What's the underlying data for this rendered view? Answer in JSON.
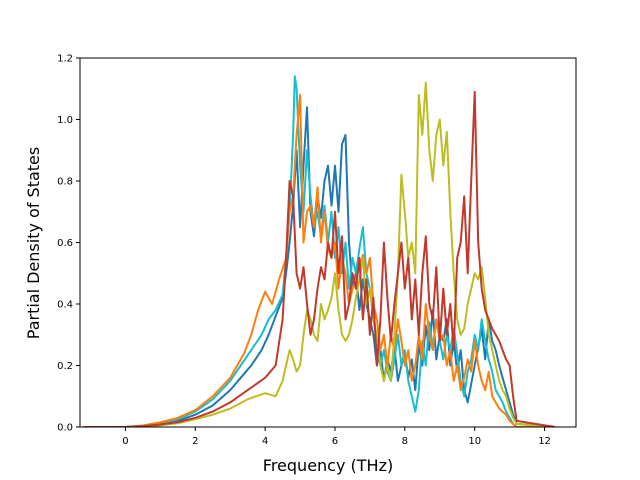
{
  "chart_data": {
    "type": "line",
    "title": "",
    "xlabel": "Frequency (THz)",
    "ylabel": "Partial Density of States",
    "xlim": [
      -1.3,
      12.9
    ],
    "ylim": [
      0.0,
      1.2
    ],
    "xticks": [
      0,
      2,
      4,
      6,
      8,
      10,
      12
    ],
    "yticks": [
      0.0,
      0.2,
      0.4,
      0.6,
      0.8,
      1.0,
      1.2
    ],
    "xtick_labels": [
      "0",
      "2",
      "4",
      "6",
      "8",
      "10",
      "12"
    ],
    "ytick_labels": [
      "0.0",
      "0.2",
      "0.4",
      "0.6",
      "0.8",
      "1.0",
      "1.2"
    ],
    "grid": false,
    "legend": "none",
    "series": [
      {
        "color": "#1f77b4",
        "x": [
          -1.2,
          0,
          0.5,
          1,
          1.5,
          2,
          2.5,
          3,
          3.3,
          3.6,
          3.9,
          4.1,
          4.3,
          4.5,
          4.6,
          4.7,
          4.8,
          4.9,
          5.0,
          5.1,
          5.2,
          5.3,
          5.4,
          5.5,
          5.6,
          5.7,
          5.8,
          5.9,
          6.0,
          6.1,
          6.2,
          6.3,
          6.4,
          6.5,
          6.6,
          6.7,
          6.8,
          6.9,
          7.0,
          7.1,
          7.2,
          7.3,
          7.4,
          7.5,
          7.6,
          7.7,
          7.8,
          7.9,
          8.0,
          8.1,
          8.2,
          8.3,
          8.4,
          8.5,
          8.6,
          8.7,
          8.8,
          8.9,
          9.0,
          9.1,
          9.2,
          9.3,
          9.4,
          9.5,
          9.6,
          9.7,
          9.8,
          9.9,
          10.0,
          10.1,
          10.2,
          10.3,
          10.4,
          10.5,
          10.6,
          10.7,
          10.8,
          10.9,
          11.0,
          11.1,
          11.2,
          12.3
        ],
        "y": [
          0,
          0,
          0.003,
          0.01,
          0.02,
          0.04,
          0.07,
          0.12,
          0.16,
          0.2,
          0.25,
          0.3,
          0.36,
          0.42,
          0.5,
          0.6,
          0.72,
          0.9,
          0.65,
          0.85,
          1.04,
          0.7,
          0.62,
          0.75,
          0.68,
          0.8,
          0.85,
          0.72,
          0.85,
          0.7,
          0.92,
          0.95,
          0.6,
          0.45,
          0.5,
          0.38,
          0.48,
          0.4,
          0.35,
          0.3,
          0.2,
          0.25,
          0.15,
          0.22,
          0.18,
          0.26,
          0.15,
          0.2,
          0.24,
          0.16,
          0.22,
          0.12,
          0.27,
          0.2,
          0.33,
          0.25,
          0.38,
          0.22,
          0.3,
          0.28,
          0.35,
          0.2,
          0.28,
          0.18,
          0.25,
          0.12,
          0.08,
          0.14,
          0.2,
          0.26,
          0.32,
          0.22,
          0.35,
          0.28,
          0.25,
          0.2,
          0.16,
          0.12,
          0.08,
          0.04,
          0.01,
          0
        ]
      },
      {
        "color": "#17becf",
        "x": [
          -1.2,
          0,
          0.5,
          1,
          1.5,
          2,
          2.5,
          3,
          3.3,
          3.6,
          3.9,
          4.1,
          4.3,
          4.5,
          4.6,
          4.7,
          4.8,
          4.85,
          4.9,
          5.0,
          5.1,
          5.2,
          5.3,
          5.4,
          5.5,
          5.6,
          5.7,
          5.8,
          5.9,
          6.0,
          6.1,
          6.2,
          6.3,
          6.4,
          6.5,
          6.6,
          6.7,
          6.8,
          6.9,
          7.0,
          7.1,
          7.2,
          7.3,
          7.4,
          7.5,
          7.6,
          7.7,
          7.8,
          7.9,
          8.0,
          8.1,
          8.2,
          8.3,
          8.4,
          8.5,
          8.6,
          8.7,
          8.8,
          8.9,
          9.0,
          9.1,
          9.2,
          9.3,
          9.4,
          9.5,
          9.6,
          9.7,
          9.8,
          9.9,
          10.0,
          10.1,
          10.2,
          10.3,
          10.4,
          10.5,
          10.6,
          10.7,
          10.8,
          10.9,
          11.0,
          11.1,
          11.2,
          12.3
        ],
        "y": [
          0,
          0,
          0.004,
          0.012,
          0.025,
          0.05,
          0.09,
          0.15,
          0.2,
          0.25,
          0.3,
          0.35,
          0.38,
          0.43,
          0.55,
          0.7,
          0.95,
          1.14,
          1.1,
          0.85,
          0.7,
          0.9,
          0.75,
          0.65,
          0.7,
          0.62,
          0.72,
          0.6,
          0.7,
          0.55,
          0.65,
          0.5,
          0.6,
          0.45,
          0.55,
          0.5,
          0.58,
          0.65,
          0.5,
          0.45,
          0.35,
          0.28,
          0.2,
          0.25,
          0.18,
          0.15,
          0.22,
          0.3,
          0.2,
          0.25,
          0.15,
          0.1,
          0.05,
          0.12,
          0.28,
          0.2,
          0.34,
          0.26,
          0.35,
          0.28,
          0.22,
          0.3,
          0.25,
          0.32,
          0.24,
          0.15,
          0.1,
          0.18,
          0.22,
          0.3,
          0.25,
          0.35,
          0.28,
          0.22,
          0.18,
          0.12,
          0.1,
          0.08,
          0.05,
          0.03,
          0.01,
          0,
          0
        ]
      },
      {
        "color": "#ff7f0e",
        "x": [
          -1.2,
          0,
          0.5,
          1,
          1.5,
          2,
          2.5,
          3,
          3.2,
          3.4,
          3.6,
          3.8,
          4.0,
          4.2,
          4.4,
          4.6,
          4.7,
          4.8,
          4.9,
          5.0,
          5.1,
          5.2,
          5.3,
          5.4,
          5.5,
          5.6,
          5.7,
          5.8,
          5.9,
          6.0,
          6.1,
          6.2,
          6.3,
          6.4,
          6.5,
          6.6,
          6.7,
          6.8,
          6.9,
          7.0,
          7.1,
          7.2,
          7.3,
          7.4,
          7.5,
          7.6,
          7.7,
          7.8,
          7.9,
          8.0,
          8.1,
          8.2,
          8.3,
          8.4,
          8.5,
          8.6,
          8.7,
          8.8,
          8.9,
          9.0,
          9.1,
          9.2,
          9.3,
          9.4,
          9.5,
          9.6,
          9.7,
          9.8,
          9.9,
          10.0,
          10.1,
          10.2,
          10.3,
          10.4,
          10.5,
          10.6,
          10.7,
          10.8,
          10.9,
          11.0,
          11.1,
          11.2,
          12.3
        ],
        "y": [
          0,
          0,
          0.005,
          0.015,
          0.03,
          0.055,
          0.1,
          0.16,
          0.2,
          0.24,
          0.3,
          0.38,
          0.44,
          0.4,
          0.48,
          0.55,
          0.7,
          0.75,
          0.95,
          1.08,
          0.6,
          0.7,
          0.72,
          0.65,
          0.78,
          0.6,
          0.7,
          0.58,
          0.55,
          0.6,
          0.45,
          0.55,
          0.5,
          0.4,
          0.45,
          0.48,
          0.52,
          0.56,
          0.5,
          0.55,
          0.4,
          0.35,
          0.25,
          0.3,
          0.2,
          0.3,
          0.25,
          0.35,
          0.28,
          0.2,
          0.25,
          0.15,
          0.2,
          0.3,
          0.22,
          0.4,
          0.3,
          0.25,
          0.35,
          0.28,
          0.3,
          0.2,
          0.25,
          0.15,
          0.2,
          0.12,
          0.16,
          0.22,
          0.18,
          0.28,
          0.2,
          0.15,
          0.12,
          0.18,
          0.1,
          0.08,
          0.06,
          0.05,
          0.04,
          0.02,
          0.01,
          0,
          0
        ]
      },
      {
        "color": "#bcbd22",
        "x": [
          -1.2,
          0,
          0.5,
          1,
          1.5,
          2,
          2.5,
          3,
          3.5,
          4.0,
          4.3,
          4.5,
          4.7,
          4.8,
          4.9,
          5.0,
          5.1,
          5.2,
          5.3,
          5.4,
          5.5,
          5.6,
          5.7,
          5.8,
          5.9,
          6.0,
          6.1,
          6.2,
          6.3,
          6.4,
          6.5,
          6.6,
          6.7,
          6.8,
          6.9,
          7.0,
          7.1,
          7.2,
          7.3,
          7.4,
          7.5,
          7.6,
          7.7,
          7.8,
          7.9,
          8.0,
          8.1,
          8.2,
          8.3,
          8.4,
          8.5,
          8.6,
          8.7,
          8.8,
          8.9,
          9.0,
          9.1,
          9.2,
          9.3,
          9.4,
          9.5,
          9.6,
          9.7,
          9.8,
          9.9,
          10.0,
          10.1,
          10.2,
          10.3,
          10.4,
          10.5,
          10.6,
          10.7,
          10.8,
          10.9,
          11.0,
          11.1,
          11.2,
          12.3
        ],
        "y": [
          0,
          0,
          0.002,
          0.006,
          0.012,
          0.025,
          0.04,
          0.06,
          0.09,
          0.11,
          0.1,
          0.15,
          0.25,
          0.22,
          0.18,
          0.2,
          0.3,
          0.38,
          0.35,
          0.3,
          0.28,
          0.4,
          0.35,
          0.38,
          0.42,
          0.5,
          0.38,
          0.3,
          0.28,
          0.3,
          0.35,
          0.42,
          0.48,
          0.55,
          0.4,
          0.45,
          0.35,
          0.3,
          0.2,
          0.15,
          0.2,
          0.15,
          0.3,
          0.5,
          0.82,
          0.7,
          0.55,
          0.6,
          0.5,
          1.08,
          0.95,
          1.12,
          0.9,
          0.8,
          0.95,
          1.0,
          0.85,
          0.96,
          0.7,
          0.5,
          0.35,
          0.3,
          0.32,
          0.4,
          0.45,
          0.5,
          0.48,
          0.52,
          0.42,
          0.3,
          0.25,
          0.2,
          0.15,
          0.12,
          0.1,
          0.06,
          0.03,
          0.01,
          0
        ]
      },
      {
        "color": "#c0392b",
        "x": [
          -1.2,
          0,
          0.5,
          1,
          1.5,
          2,
          2.5,
          3,
          3.5,
          4.0,
          4.3,
          4.5,
          4.6,
          4.7,
          4.8,
          4.9,
          5.0,
          5.1,
          5.2,
          5.3,
          5.4,
          5.5,
          5.6,
          5.7,
          5.8,
          5.9,
          6.0,
          6.1,
          6.2,
          6.3,
          6.4,
          6.5,
          6.6,
          6.7,
          6.8,
          6.9,
          7.0,
          7.1,
          7.2,
          7.3,
          7.4,
          7.5,
          7.6,
          7.7,
          7.8,
          7.9,
          8.0,
          8.1,
          8.2,
          8.3,
          8.4,
          8.5,
          8.6,
          8.7,
          8.8,
          8.9,
          9.0,
          9.1,
          9.2,
          9.3,
          9.4,
          9.5,
          9.6,
          9.7,
          9.8,
          9.9,
          10.0,
          10.1,
          10.2,
          10.3,
          10.4,
          10.5,
          10.6,
          10.7,
          10.8,
          10.9,
          11.0,
          11.1,
          11.2,
          12.3
        ],
        "y": [
          0,
          0,
          0.003,
          0.008,
          0.016,
          0.03,
          0.05,
          0.08,
          0.12,
          0.16,
          0.2,
          0.35,
          0.55,
          0.8,
          0.75,
          0.5,
          0.45,
          0.52,
          0.4,
          0.3,
          0.35,
          0.45,
          0.52,
          0.48,
          0.6,
          0.55,
          0.7,
          0.5,
          0.62,
          0.35,
          0.4,
          0.5,
          0.45,
          0.55,
          0.35,
          0.48,
          0.3,
          0.42,
          0.2,
          0.35,
          0.6,
          0.42,
          0.28,
          0.4,
          0.5,
          0.6,
          0.45,
          0.55,
          0.35,
          0.48,
          0.3,
          0.5,
          0.62,
          0.4,
          0.35,
          0.52,
          0.28,
          0.45,
          0.3,
          0.4,
          0.25,
          0.55,
          0.6,
          0.75,
          0.5,
          0.8,
          1.09,
          0.6,
          0.45,
          0.38,
          0.35,
          0.32,
          0.3,
          0.28,
          0.25,
          0.22,
          0.2,
          0.1,
          0.02,
          0
        ]
      }
    ]
  }
}
